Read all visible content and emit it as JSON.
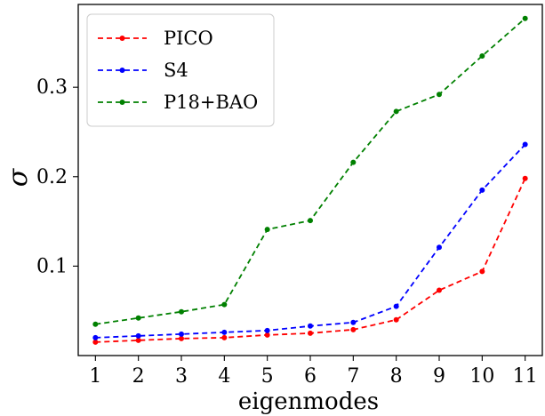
{
  "chart_data": {
    "type": "line",
    "title": "",
    "xlabel": "eigenmodes",
    "ylabel": "σ",
    "x": [
      1,
      2,
      3,
      4,
      5,
      6,
      7,
      8,
      9,
      10,
      11
    ],
    "xticks": [
      "1",
      "2",
      "3",
      "4",
      "5",
      "6",
      "7",
      "8",
      "9",
      "10",
      "11"
    ],
    "yticks": [
      "0.1",
      "0.2",
      "0.3"
    ],
    "ytick_values": [
      0.1,
      0.2,
      0.3
    ],
    "xlim": [
      0.6,
      11.4
    ],
    "ylim": [
      0.0,
      0.3926
    ],
    "grid": false,
    "legend_position": "top-left",
    "series": [
      {
        "name": "PICO",
        "color": "#ff0000",
        "style": "dashed",
        "marker": "dot",
        "values": [
          0.015,
          0.017,
          0.019,
          0.02,
          0.023,
          0.025,
          0.029,
          0.04,
          0.073,
          0.094,
          0.198
        ]
      },
      {
        "name": "S4",
        "color": "#0000ff",
        "style": "dashed",
        "marker": "dot",
        "values": [
          0.02,
          0.022,
          0.024,
          0.026,
          0.028,
          0.033,
          0.037,
          0.055,
          0.121,
          0.185,
          0.236
        ]
      },
      {
        "name": "P18+BAO",
        "color": "#008000",
        "style": "dashed",
        "marker": "dot",
        "values": [
          0.035,
          0.042,
          0.049,
          0.057,
          0.141,
          0.151,
          0.216,
          0.273,
          0.292,
          0.335,
          0.377
        ]
      }
    ]
  }
}
